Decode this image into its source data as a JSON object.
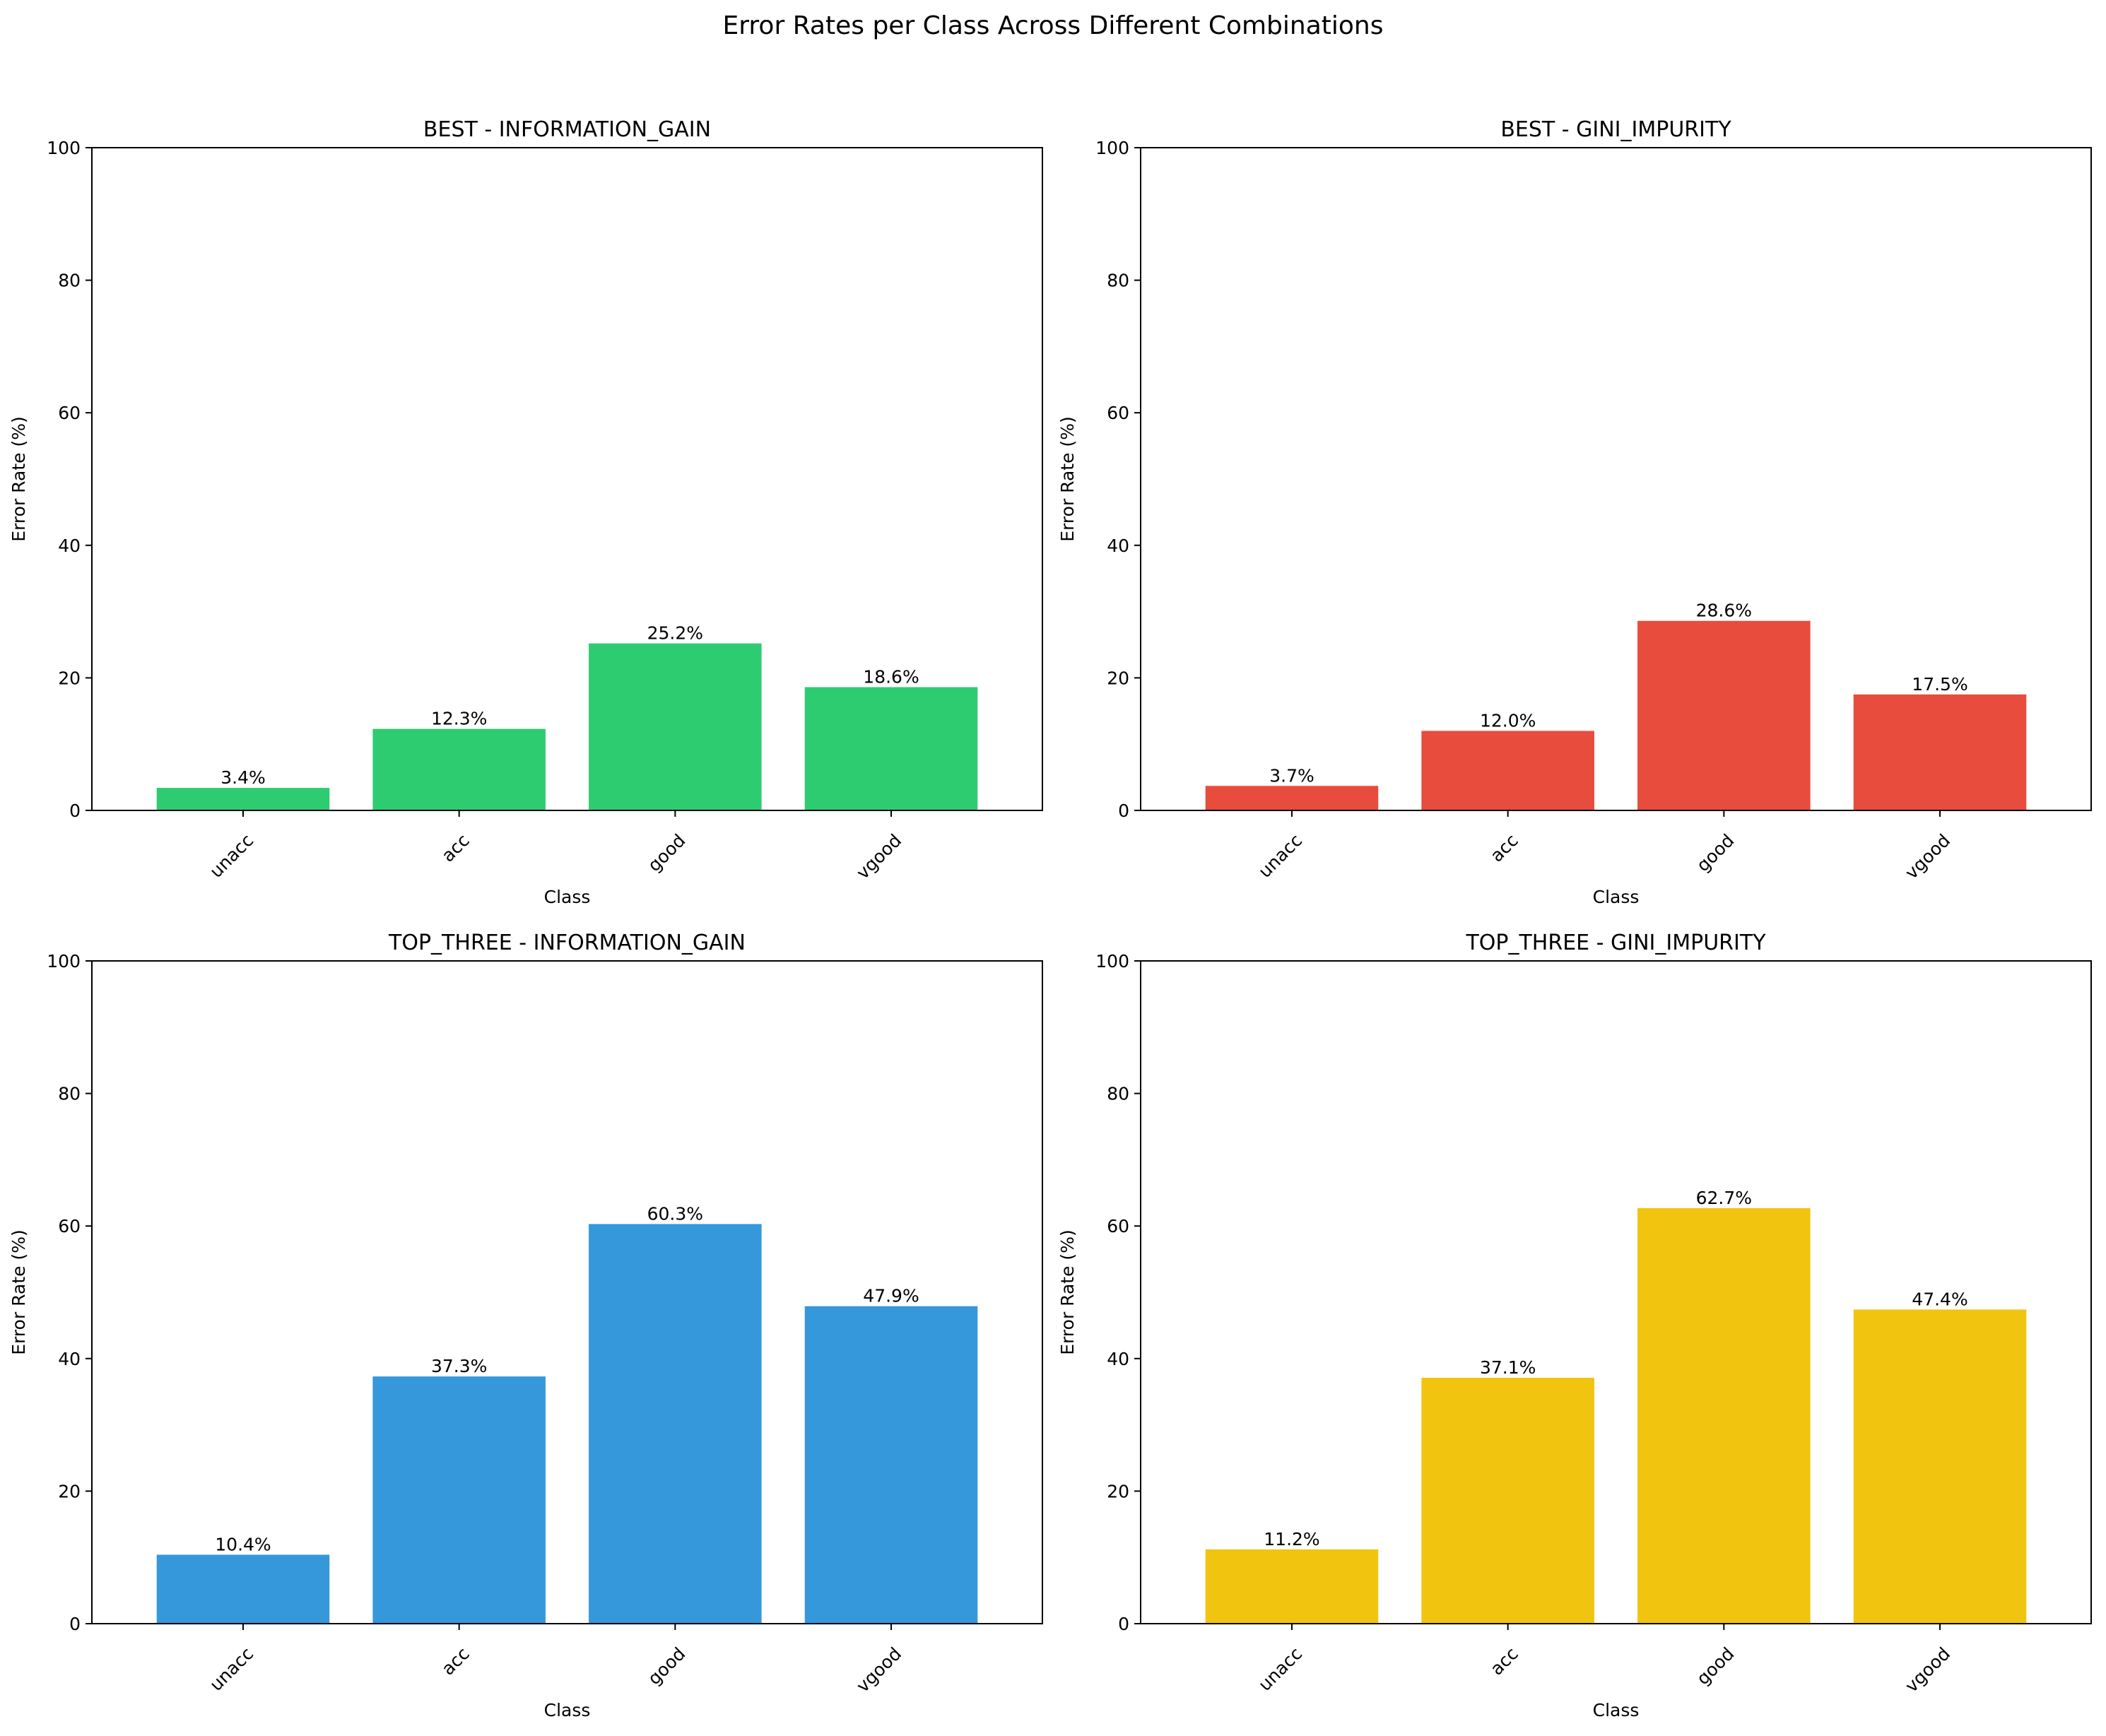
{
  "figure": {
    "title": "Error Rates per Class Across Different Combinations"
  },
  "chart_data": [
    {
      "type": "bar",
      "title": "BEST - INFORMATION_GAIN",
      "xlabel": "Class",
      "ylabel": "Error Rate (%)",
      "categories": [
        "unacc",
        "acc",
        "good",
        "vgood"
      ],
      "values": [
        3.4,
        12.3,
        25.2,
        18.6
      ],
      "value_labels": [
        "3.4%",
        "12.3%",
        "25.2%",
        "18.6%"
      ],
      "ylim": [
        0,
        100
      ],
      "yticks": [
        0,
        20,
        40,
        60,
        80,
        100
      ],
      "color": "#2ecc71",
      "grid": false
    },
    {
      "type": "bar",
      "title": "BEST - GINI_IMPURITY",
      "xlabel": "Class",
      "ylabel": "Error Rate (%)",
      "categories": [
        "unacc",
        "acc",
        "good",
        "vgood"
      ],
      "values": [
        3.7,
        12.0,
        28.6,
        17.5
      ],
      "value_labels": [
        "3.7%",
        "12.0%",
        "28.6%",
        "17.5%"
      ],
      "ylim": [
        0,
        100
      ],
      "yticks": [
        0,
        20,
        40,
        60,
        80,
        100
      ],
      "color": "#e74c3c",
      "grid": false
    },
    {
      "type": "bar",
      "title": "TOP_THREE - INFORMATION_GAIN",
      "xlabel": "Class",
      "ylabel": "Error Rate (%)",
      "categories": [
        "unacc",
        "acc",
        "good",
        "vgood"
      ],
      "values": [
        10.4,
        37.3,
        60.3,
        47.9
      ],
      "value_labels": [
        "10.4%",
        "37.3%",
        "60.3%",
        "47.9%"
      ],
      "ylim": [
        0,
        100
      ],
      "yticks": [
        0,
        20,
        40,
        60,
        80,
        100
      ],
      "color": "#3498db",
      "grid": false
    },
    {
      "type": "bar",
      "title": "TOP_THREE - GINI_IMPURITY",
      "xlabel": "Class",
      "ylabel": "Error Rate (%)",
      "categories": [
        "unacc",
        "acc",
        "good",
        "vgood"
      ],
      "values": [
        11.2,
        37.1,
        62.7,
        47.4
      ],
      "value_labels": [
        "11.2%",
        "37.1%",
        "62.7%",
        "47.4%"
      ],
      "ylim": [
        0,
        100
      ],
      "yticks": [
        0,
        20,
        40,
        60,
        80,
        100
      ],
      "color": "#f1c40f",
      "grid": false
    }
  ]
}
